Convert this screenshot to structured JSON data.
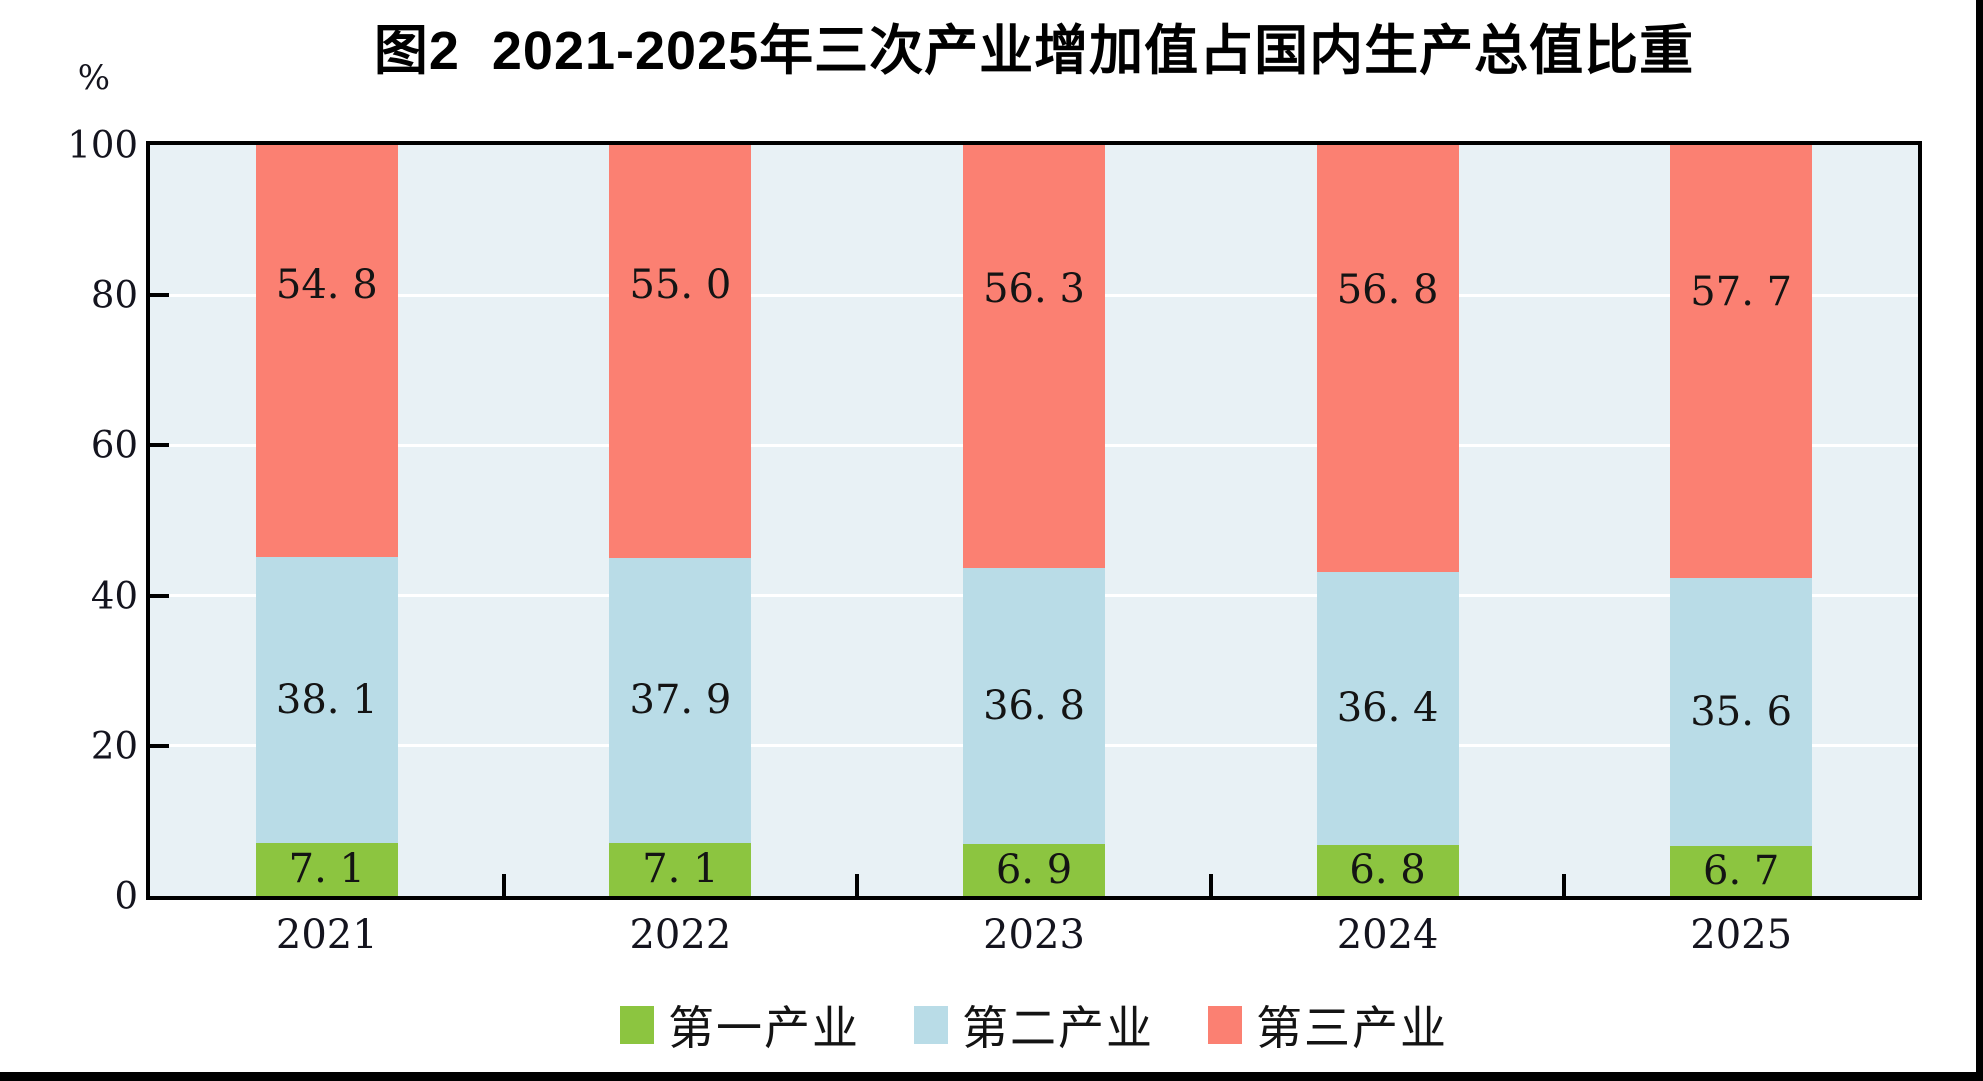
{
  "title": "图2  2021-2025年三次产业增加值占国内生产总值比重",
  "y_axis": {
    "unit": "%",
    "tick_labels": [
      "0",
      "20",
      "40",
      "60",
      "80",
      "100"
    ]
  },
  "legend": {
    "position": "bottom",
    "items": [
      {
        "label": "第一产业",
        "color": "#8CC540"
      },
      {
        "label": "第二产业",
        "color": "#B9DCE7"
      },
      {
        "label": "第三产业",
        "color": "#FB8072"
      }
    ]
  },
  "chart_data": {
    "type": "bar",
    "stacked": true,
    "title": "图2  2021-2025年三次产业增加值占国内生产总值比重",
    "categories": [
      "2021",
      "2022",
      "2023",
      "2024",
      "2025"
    ],
    "series": [
      {
        "name": "第一产业",
        "color": "#8CC540",
        "values": [
          7.1,
          7.1,
          6.9,
          6.8,
          6.7
        ],
        "labels": [
          "7. 1",
          "7. 1",
          "6. 9",
          "6. 8",
          "6. 7"
        ],
        "label_align": "center"
      },
      {
        "name": "第二产业",
        "color": "#B9DCE7",
        "values": [
          38.1,
          37.9,
          36.8,
          36.4,
          35.6
        ],
        "labels": [
          "38. 1",
          "37. 9",
          "36. 8",
          "36. 4",
          "35. 6"
        ],
        "label_align": "center"
      },
      {
        "name": "第三产业",
        "color": "#FB8072",
        "values": [
          54.8,
          55.0,
          56.3,
          56.8,
          57.7
        ],
        "labels": [
          "54. 8",
          "55. 0",
          "56. 3",
          "56. 8",
          "57. 7"
        ],
        "label_align": "high"
      }
    ],
    "xlabel": "",
    "ylabel": "%",
    "ylim": [
      0,
      100
    ],
    "y_ticks": [
      0,
      20,
      40,
      60,
      80,
      100
    ],
    "grid": true,
    "gridline_color": "#FFFFFF",
    "plot_background": "#E8F1F5",
    "legend_position": "bottom"
  }
}
